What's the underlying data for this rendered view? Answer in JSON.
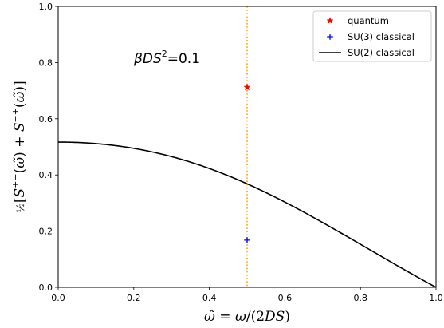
{
  "chart_data": {
    "type": "line",
    "xlabel": "ω̃ = ω/(2DS)",
    "ylabel": "½[S⁺⁻(ω̃) + S⁻⁺(ω̃)]",
    "xlim": [
      0.0,
      1.0
    ],
    "ylim": [
      0.0,
      1.0
    ],
    "xticks": [
      "0.0",
      "0.2",
      "0.4",
      "0.6",
      "0.8",
      "1.0"
    ],
    "yticks": [
      "0.0",
      "0.2",
      "0.4",
      "0.6",
      "0.8",
      "1.0"
    ],
    "grid": false,
    "legend_position": "top-right",
    "annotation": "βDS² = 0.1",
    "vertical_line": {
      "x": 0.5,
      "color": "#FFA500",
      "style": "dotted"
    },
    "series": [
      {
        "name": "quantum",
        "kind": "scatter",
        "marker": "star",
        "color": "#FF0000",
        "x": [
          0.5
        ],
        "y": [
          0.712
        ]
      },
      {
        "name": "SU(3) classical",
        "kind": "scatter",
        "marker": "plus",
        "color": "#0000FF",
        "x": [
          0.5
        ],
        "y": [
          0.168
        ]
      },
      {
        "name": "SU(2) classical",
        "kind": "line",
        "color": "#000000",
        "x": [
          0.0,
          0.05,
          0.1,
          0.15,
          0.2,
          0.25,
          0.3,
          0.35,
          0.4,
          0.45,
          0.5,
          0.55,
          0.6,
          0.65,
          0.7,
          0.75,
          0.8,
          0.85,
          0.9,
          0.95,
          1.0
        ],
        "y": [
          0.517,
          0.5147,
          0.5077,
          0.4961,
          0.4798,
          0.4586,
          0.4326,
          0.4015,
          0.3653,
          0.3237,
          0.3799,
          0.3399,
          0.2968,
          0.2503,
          0.2004,
          0.1468,
          0.0895,
          0.0282,
          0.0,
          0.0,
          0.0
        ]
      }
    ]
  }
}
